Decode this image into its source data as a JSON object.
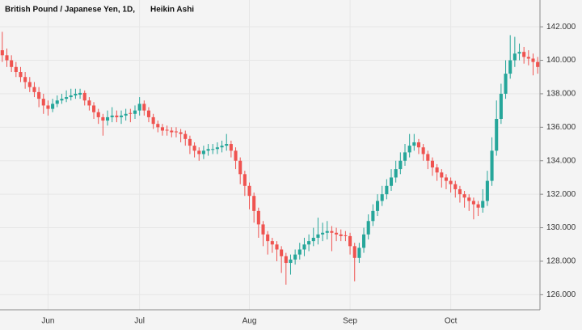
{
  "chart_data": {
    "type": "candlestick",
    "title": "British Pound / Japanese Yen, 1D,",
    "subtitle": "Heikin Ashi",
    "categories": [
      null,
      null,
      null,
      null,
      null,
      null,
      null,
      null,
      null,
      null,
      "Jun",
      null,
      null,
      null,
      null,
      null,
      null,
      null,
      null,
      null,
      null,
      null,
      null,
      null,
      null,
      null,
      null,
      null,
      null,
      null,
      "Jul",
      null,
      null,
      null,
      null,
      null,
      null,
      null,
      null,
      null,
      null,
      null,
      null,
      null,
      null,
      null,
      null,
      null,
      null,
      null,
      null,
      null,
      null,
      null,
      "Aug",
      null,
      null,
      null,
      null,
      null,
      null,
      null,
      null,
      null,
      null,
      null,
      null,
      null,
      null,
      null,
      null,
      null,
      null,
      null,
      null,
      null,
      "Sep",
      null,
      null,
      null,
      null,
      null,
      null,
      null,
      null,
      null,
      null,
      null,
      null,
      null,
      null,
      null,
      null,
      null,
      null,
      null,
      null,
      null,
      "Oct",
      null,
      null,
      null,
      null,
      null,
      null,
      null,
      null,
      null,
      null,
      null,
      null,
      null,
      null,
      null,
      null,
      null,
      null,
      null
    ],
    "open": [
      140.6,
      140.3,
      140.0,
      139.6,
      139.3,
      139.0,
      138.7,
      138.4,
      138.1,
      137.7,
      137.3,
      137.1,
      137.4,
      137.6,
      137.7,
      137.8,
      137.9,
      137.95,
      138.05,
      137.6,
      137.3,
      136.9,
      136.6,
      136.4,
      136.6,
      136.7,
      136.6,
      136.7,
      136.85,
      136.8,
      137.0,
      137.4,
      137.0,
      136.6,
      136.2,
      136.0,
      135.85,
      135.8,
      135.75,
      135.7,
      135.6,
      135.3,
      134.9,
      134.6,
      134.4,
      134.6,
      134.65,
      134.7,
      134.8,
      134.9,
      135.0,
      134.6,
      134.0,
      133.2,
      132.5,
      131.9,
      131.0,
      130.2,
      129.6,
      129.2,
      129.0,
      128.7,
      128.3,
      127.9,
      128.1,
      128.4,
      128.7,
      129.0,
      129.2,
      129.4,
      129.6,
      129.7,
      129.8,
      129.7,
      129.6,
      129.55,
      129.5,
      128.9,
      128.2,
      128.8,
      129.6,
      130.4,
      131.0,
      131.6,
      132.0,
      132.5,
      133.0,
      133.5,
      134.0,
      134.5,
      134.9,
      135.1,
      134.8,
      134.4,
      134.0,
      133.6,
      133.3,
      133.0,
      132.8,
      132.6,
      132.3,
      132.0,
      131.8,
      131.6,
      131.4,
      131.2,
      131.6,
      132.8,
      134.6,
      136.5,
      138.0,
      139.2,
      140.0,
      140.4,
      140.5,
      140.2,
      140.1,
      139.9
    ],
    "high": [
      141.7,
      140.7,
      140.3,
      139.9,
      139.6,
      139.3,
      139.0,
      138.7,
      138.4,
      138.0,
      137.6,
      137.7,
      137.9,
      138.0,
      138.2,
      138.3,
      138.3,
      138.3,
      138.2,
      137.8,
      137.5,
      137.1,
      136.8,
      137.0,
      137.2,
      137.0,
      137.0,
      137.1,
      137.1,
      137.3,
      137.8,
      137.6,
      137.2,
      136.8,
      136.4,
      136.2,
      136.1,
      136.0,
      136.0,
      135.9,
      135.8,
      135.5,
      135.1,
      134.8,
      134.9,
      135.0,
      135.0,
      135.1,
      135.2,
      135.6,
      135.2,
      134.8,
      134.2,
      133.4,
      132.7,
      132.1,
      131.2,
      130.4,
      129.8,
      129.4,
      129.2,
      128.9,
      128.5,
      128.4,
      128.7,
      129.1,
      129.4,
      129.6,
      130.0,
      130.6,
      130.3,
      130.4,
      130.1,
      130.0,
      129.9,
      129.8,
      129.7,
      129.1,
      129.1,
      130.0,
      130.8,
      131.4,
      132.0,
      132.5,
      132.9,
      133.5,
      134.0,
      134.5,
      135.0,
      135.6,
      135.6,
      135.3,
      135.0,
      134.6,
      134.2,
      133.8,
      133.5,
      133.2,
      133.0,
      132.8,
      132.5,
      132.2,
      132.0,
      131.8,
      131.6,
      132.3,
      133.4,
      135.4,
      137.6,
      138.6,
      140.0,
      141.5,
      141.4,
      141.0,
      140.8,
      140.6,
      140.4,
      140.2
    ],
    "low": [
      139.9,
      139.6,
      139.3,
      139.0,
      138.7,
      138.3,
      138.1,
      137.8,
      137.2,
      136.8,
      136.7,
      136.9,
      137.2,
      137.4,
      137.5,
      137.6,
      137.7,
      137.7,
      137.3,
      137.0,
      136.5,
      136.2,
      135.5,
      136.1,
      136.3,
      136.3,
      136.2,
      136.4,
      136.3,
      136.5,
      136.7,
      136.7,
      136.3,
      135.9,
      135.7,
      135.5,
      135.5,
      135.4,
      135.4,
      135.1,
      134.9,
      134.4,
      134.2,
      134.0,
      134.1,
      134.3,
      134.4,
      134.4,
      134.5,
      134.6,
      134.2,
      133.5,
      132.6,
      131.9,
      131.1,
      130.3,
      129.4,
      128.9,
      128.4,
      128.5,
      128.0,
      127.3,
      126.6,
      127.2,
      127.8,
      128.1,
      128.3,
      128.6,
      128.9,
      129.0,
      129.2,
      129.3,
      128.6,
      129.2,
      129.2,
      129.2,
      128.4,
      126.8,
      127.9,
      128.5,
      129.3,
      130.1,
      130.7,
      131.3,
      131.7,
      132.2,
      132.7,
      133.2,
      133.7,
      134.2,
      134.6,
      134.4,
      134.0,
      133.5,
      133.1,
      132.8,
      132.4,
      132.3,
      132.1,
      131.8,
      131.5,
      131.2,
      131.0,
      130.5,
      130.7,
      130.9,
      131.3,
      132.5,
      134.3,
      136.2,
      137.7,
      138.9,
      139.6,
      140.0,
      139.8,
      139.7,
      139.1,
      139.2
    ],
    "close": [
      140.3,
      140.0,
      139.6,
      139.3,
      139.0,
      138.7,
      138.4,
      138.1,
      137.7,
      137.3,
      137.1,
      137.4,
      137.6,
      137.7,
      137.8,
      137.9,
      138.0,
      138.05,
      137.6,
      137.3,
      136.9,
      136.6,
      136.4,
      136.6,
      136.7,
      136.6,
      136.7,
      136.8,
      136.8,
      137.0,
      137.4,
      137.0,
      136.6,
      136.2,
      136.0,
      135.8,
      135.8,
      135.7,
      135.7,
      135.6,
      135.3,
      134.9,
      134.6,
      134.4,
      134.6,
      134.7,
      134.7,
      134.8,
      134.9,
      135.0,
      134.6,
      134.0,
      133.2,
      132.5,
      131.9,
      131.0,
      130.2,
      129.6,
      129.2,
      129.0,
      128.7,
      128.3,
      127.9,
      128.1,
      128.4,
      128.7,
      129.0,
      129.2,
      129.4,
      129.6,
      129.7,
      129.8,
      129.7,
      129.6,
      129.5,
      129.5,
      128.9,
      128.2,
      128.8,
      129.6,
      130.4,
      131.0,
      131.6,
      132.0,
      132.5,
      133.0,
      133.5,
      134.0,
      134.5,
      134.9,
      135.1,
      134.8,
      134.4,
      134.0,
      133.6,
      133.3,
      133.0,
      132.8,
      132.6,
      132.3,
      132.0,
      131.8,
      131.6,
      131.4,
      131.2,
      131.6,
      132.8,
      134.6,
      136.5,
      138.0,
      139.2,
      140.0,
      140.4,
      140.5,
      140.2,
      140.1,
      139.9,
      139.6
    ],
    "up_color": "#26a69a",
    "down_color": "#ef5350",
    "ylim": [
      125.1,
      143.6
    ],
    "yticks": [
      {
        "value": 126,
        "label": "126.000"
      },
      {
        "value": 128,
        "label": "128.000"
      },
      {
        "value": 130,
        "label": "130.000"
      },
      {
        "value": 132,
        "label": "132.000"
      },
      {
        "value": 134,
        "label": "134.000"
      },
      {
        "value": 136,
        "label": "136.000"
      },
      {
        "value": 138,
        "label": "138.000"
      },
      {
        "value": 140,
        "label": "140.000"
      },
      {
        "value": 142,
        "label": "142.000"
      }
    ],
    "grid": true
  }
}
